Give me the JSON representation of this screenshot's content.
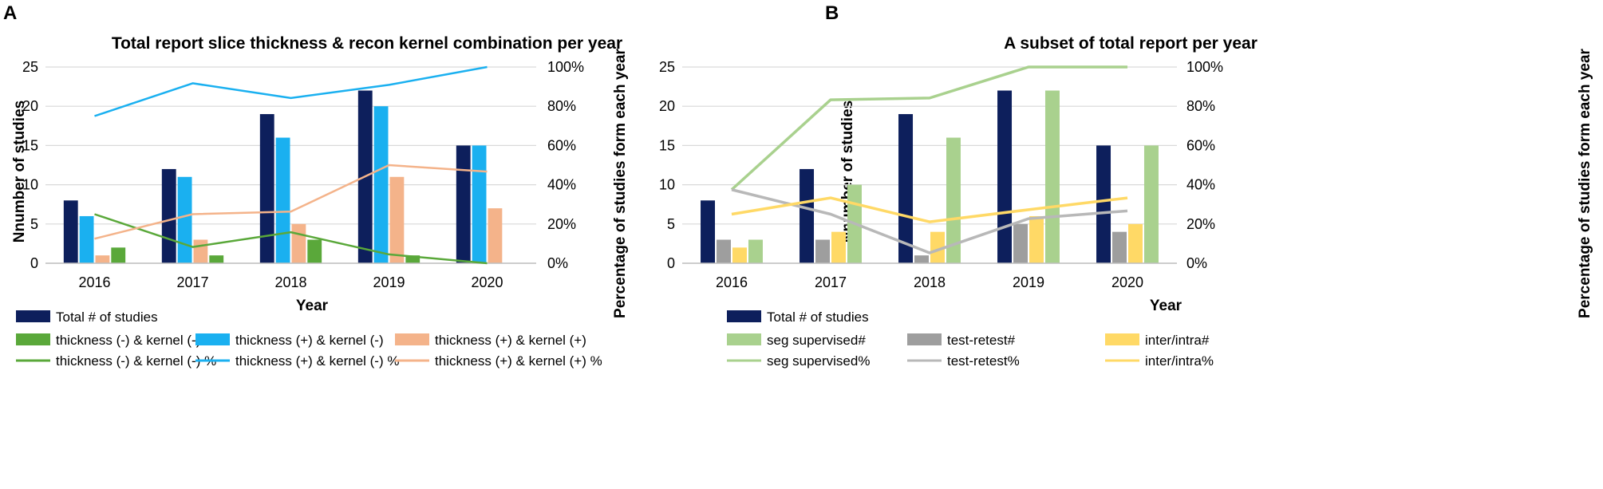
{
  "chart_data": [
    {
      "panel": "A",
      "type": "bar+line",
      "title": "Total report slice thickness & recon kernel combination per year",
      "xlabel": "Year",
      "ylabel": "Nnumber of studies",
      "y2label": "Percentage of studies form each year",
      "categories": [
        "2016",
        "2017",
        "2018",
        "2019",
        "2020"
      ],
      "ylim": [
        0,
        25
      ],
      "yticks": [
        "0",
        "5",
        "10",
        "15",
        "20",
        "25"
      ],
      "y2lim": [
        0,
        100
      ],
      "y2ticks": [
        "0%",
        "20%",
        "40%",
        "60%",
        "80%",
        "100%"
      ],
      "bars": [
        {
          "name": "Total # of studies",
          "color": "#0d1f5c",
          "values": [
            8,
            12,
            19,
            22,
            15
          ]
        },
        {
          "name": "thickness (+) & kernel (-)",
          "color": "#1ab0f0",
          "values": [
            6,
            11,
            16,
            20,
            15
          ]
        },
        {
          "name": "thickness (+) & kernel (+)",
          "color": "#f4b38a",
          "values": [
            1,
            3,
            5,
            11,
            7
          ]
        },
        {
          "name": "thickness (-) & kernel (-)",
          "color": "#5aa83a",
          "values": [
            2,
            1,
            3,
            1,
            0
          ]
        }
      ],
      "lines": [
        {
          "name": "thickness (-) & kernel (-) %",
          "color": "#5aa83a",
          "values": [
            25,
            8.3,
            15.8,
            4.5,
            0
          ]
        },
        {
          "name": "thickness (+) & kernel (-) %",
          "color": "#1ab0f0",
          "values": [
            75,
            91.7,
            84.2,
            90.9,
            100
          ]
        },
        {
          "name": "thickness (+) & kernel (+) %",
          "color": "#f4b38a",
          "values": [
            12.5,
            25,
            26.3,
            50,
            46.7
          ]
        }
      ],
      "legend": [
        {
          "label": "Total # of studies",
          "kind": "bar",
          "color": "#0d1f5c"
        },
        {
          "label": "thickness (-) & kernel (-)",
          "kind": "bar",
          "color": "#5aa83a"
        },
        {
          "label": "thickness (+) & kernel (-)",
          "kind": "bar",
          "color": "#1ab0f0"
        },
        {
          "label": "thickness (+) & kernel (+)",
          "kind": "bar",
          "color": "#f4b38a"
        },
        {
          "label": "thickness (-) & kernel (-) %",
          "kind": "line",
          "color": "#5aa83a"
        },
        {
          "label": "thickness (+) & kernel (-) %",
          "kind": "line",
          "color": "#1ab0f0"
        },
        {
          "label": "thickness (+) & kernel (+) %",
          "kind": "line",
          "color": "#f4b38a"
        }
      ]
    },
    {
      "panel": "B",
      "type": "bar+line",
      "title": "A subset of total report per year",
      "xlabel": "Year",
      "ylabel": "Nnumber of studies",
      "y2label": "Percentage of studies form each year",
      "categories": [
        "2016",
        "2017",
        "2018",
        "2019",
        "2020"
      ],
      "ylim": [
        0,
        25
      ],
      "yticks": [
        "0",
        "5",
        "10",
        "15",
        "20",
        "25"
      ],
      "y2lim": [
        0,
        100
      ],
      "y2ticks": [
        "0%",
        "20%",
        "40%",
        "60%",
        "80%",
        "100%"
      ],
      "bars": [
        {
          "name": "Total # of studies",
          "color": "#0d1f5c",
          "values": [
            8,
            12,
            19,
            22,
            15
          ]
        },
        {
          "name": "test-retest#",
          "color": "#9e9e9e",
          "values": [
            3,
            3,
            1,
            5,
            4
          ]
        },
        {
          "name": "inter/intra#",
          "color": "#ffd966",
          "values": [
            2,
            4,
            4,
            6,
            5
          ]
        },
        {
          "name": "seg supervised#",
          "color": "#a9d18e",
          "values": [
            3,
            10,
            16,
            22,
            15
          ]
        }
      ],
      "lines": [
        {
          "name": "seg supervised%",
          "color": "#a9d18e",
          "values": [
            37.5,
            83.3,
            84.2,
            100,
            100
          ]
        },
        {
          "name": "test-retest%",
          "color": "#b8b8b8",
          "values": [
            37.5,
            25,
            5.3,
            22.7,
            26.7
          ]
        },
        {
          "name": "inter/intra%",
          "color": "#ffd966",
          "values": [
            25,
            33.3,
            21.1,
            27.3,
            33.3
          ]
        }
      ],
      "legend": [
        {
          "label": "Total # of studies",
          "kind": "bar",
          "color": "#0d1f5c"
        },
        {
          "label": "seg supervised#",
          "kind": "bar",
          "color": "#a9d18e"
        },
        {
          "label": "test-retest#",
          "kind": "bar",
          "color": "#9e9e9e"
        },
        {
          "label": "inter/intra#",
          "kind": "bar",
          "color": "#ffd966"
        },
        {
          "label": "seg supervised%",
          "kind": "line",
          "color": "#a9d18e"
        },
        {
          "label": "test-retest%",
          "kind": "line",
          "color": "#b8b8b8"
        },
        {
          "label": "inter/intra%",
          "kind": "line",
          "color": "#ffd966"
        }
      ]
    }
  ]
}
